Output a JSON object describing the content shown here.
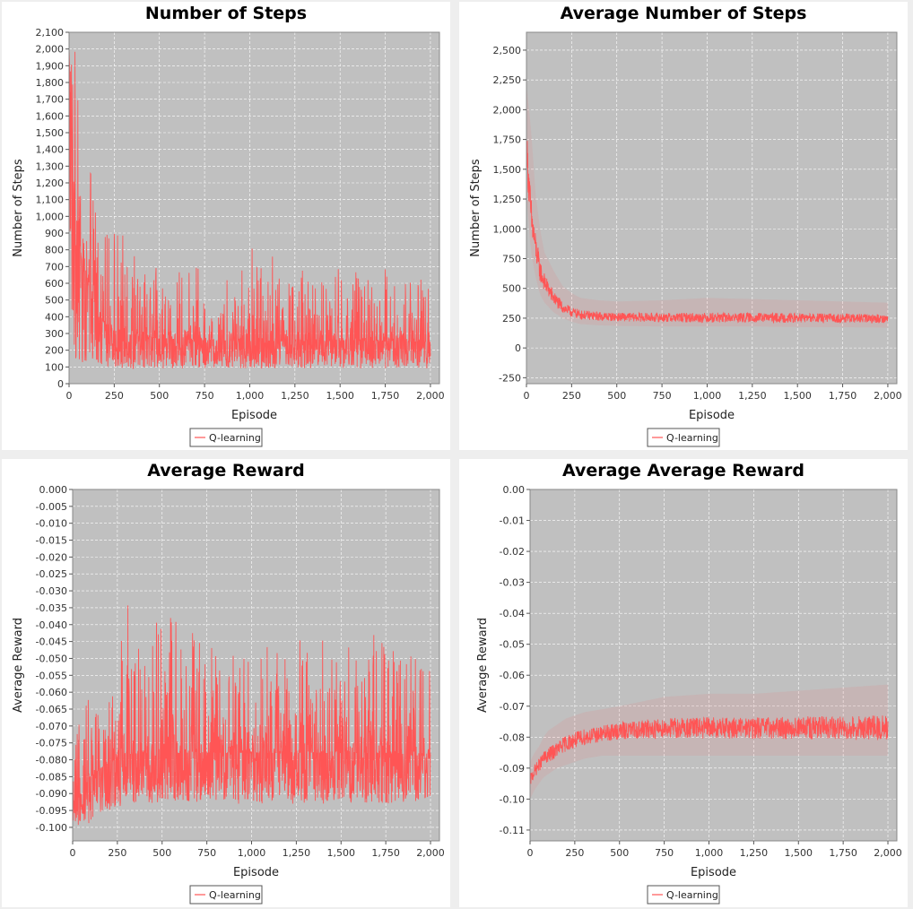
{
  "chart_data": [
    {
      "type": "line",
      "title": "Number of Steps",
      "xlabel": "Episode",
      "ylabel": "Number of Steps",
      "xlim": [
        0,
        2050
      ],
      "ylim": [
        0,
        2100
      ],
      "xticks": [
        0,
        250,
        500,
        750,
        1000,
        1250,
        1500,
        1750,
        2000
      ],
      "xtick_labels": [
        "0",
        "250",
        "500",
        "750",
        "1,000",
        "1,250",
        "1,500",
        "1,750",
        "2,000"
      ],
      "yticks": [
        0,
        100,
        200,
        300,
        400,
        500,
        600,
        700,
        800,
        900,
        1000,
        1100,
        1200,
        1300,
        1400,
        1500,
        1600,
        1700,
        1800,
        1900,
        2000,
        2100
      ],
      "ytick_labels": [
        "0",
        "100",
        "200",
        "300",
        "400",
        "500",
        "600",
        "700",
        "800",
        "900",
        "1,000",
        "1,100",
        "1,200",
        "1,300",
        "1,400",
        "1,500",
        "1,600",
        "1,700",
        "1,800",
        "1,900",
        "2,000",
        "2,100"
      ],
      "grid": true,
      "legend": "bottom-center",
      "series": [
        {
          "name": "Q-learning",
          "color": "#ff5555",
          "x": [
            0,
            25,
            50,
            75,
            100,
            150,
            200,
            250,
            300,
            400,
            500,
            750,
            1000,
            1250,
            1500,
            1750,
            2000
          ],
          "y": [
            2000,
            1100,
            900,
            700,
            600,
            420,
            360,
            320,
            300,
            280,
            270,
            260,
            255,
            255,
            255,
            255,
            250
          ],
          "min": [
            200,
            150,
            140,
            120,
            110,
            100,
            100,
            100,
            90,
            90,
            90,
            90,
            90,
            90,
            90,
            90,
            90
          ],
          "max": [
            2000,
            2000,
            2000,
            1550,
            1250,
            1700,
            900,
            1000,
            880,
            700,
            690,
            700,
            820,
            700,
            700,
            710,
            600
          ]
        }
      ]
    },
    {
      "type": "line",
      "title": "Average Number of Steps",
      "xlabel": "Episode",
      "ylabel": "Number of Steps",
      "xlim": [
        0,
        2050
      ],
      "ylim": [
        -300,
        2650
      ],
      "xticks": [
        0,
        250,
        500,
        750,
        1000,
        1250,
        1500,
        1750,
        2000
      ],
      "xtick_labels": [
        "0",
        "250",
        "500",
        "750",
        "1,000",
        "1,250",
        "1,500",
        "1,750",
        "2,000"
      ],
      "yticks": [
        -250,
        0,
        250,
        500,
        750,
        1000,
        1250,
        1500,
        1750,
        2000,
        2250,
        2500
      ],
      "ytick_labels": [
        "-250",
        "0",
        "250",
        "500",
        "750",
        "1,000",
        "1,250",
        "1,500",
        "1,750",
        "2,000",
        "2,250",
        "2,500"
      ],
      "grid": true,
      "legend": "bottom-center",
      "series": [
        {
          "name": "Q-learning",
          "color": "#ff5555",
          "x": [
            0,
            25,
            50,
            75,
            100,
            150,
            200,
            250,
            300,
            400,
            500,
            750,
            1000,
            1250,
            1500,
            1750,
            2000
          ],
          "y": [
            1700,
            1100,
            850,
            650,
            550,
            420,
            340,
            300,
            280,
            265,
            260,
            255,
            255,
            255,
            252,
            250,
            245
          ],
          "min": [
            1300,
            800,
            600,
            450,
            380,
            300,
            250,
            220,
            200,
            190,
            185,
            180,
            180,
            180,
            175,
            175,
            170
          ],
          "max": [
            2200,
            1850,
            1300,
            1000,
            800,
            650,
            520,
            460,
            420,
            400,
            390,
            400,
            420,
            410,
            400,
            390,
            380
          ]
        }
      ]
    },
    {
      "type": "line",
      "title": "Average Reward",
      "xlabel": "Episode",
      "ylabel": "Average Reward",
      "xlim": [
        0,
        2050
      ],
      "ylim": [
        -0.104,
        0
      ],
      "xticks": [
        0,
        250,
        500,
        750,
        1000,
        1250,
        1500,
        1750,
        2000
      ],
      "xtick_labels": [
        "0",
        "250",
        "500",
        "750",
        "1,000",
        "1,250",
        "1,500",
        "1,750",
        "2,000"
      ],
      "yticks": [
        0,
        -0.005,
        -0.01,
        -0.015,
        -0.02,
        -0.025,
        -0.03,
        -0.035,
        -0.04,
        -0.045,
        -0.05,
        -0.055,
        -0.06,
        -0.065,
        -0.07,
        -0.075,
        -0.08,
        -0.085,
        -0.09,
        -0.095,
        -0.1
      ],
      "ytick_labels": [
        "0.000",
        "-0.005",
        "-0.010",
        "-0.015",
        "-0.020",
        "-0.025",
        "-0.030",
        "-0.035",
        "-0.040",
        "-0.045",
        "-0.050",
        "-0.055",
        "-0.060",
        "-0.065",
        "-0.070",
        "-0.075",
        "-0.080",
        "-0.085",
        "-0.090",
        "-0.095",
        "-0.100"
      ],
      "grid": true,
      "legend": "bottom-center",
      "series": [
        {
          "name": "Q-learning",
          "color": "#ff5555",
          "x": [
            0,
            25,
            50,
            75,
            100,
            150,
            200,
            250,
            300,
            400,
            500,
            750,
            1000,
            1250,
            1500,
            1750,
            2000
          ],
          "y": [
            -0.097,
            -0.092,
            -0.09,
            -0.087,
            -0.085,
            -0.083,
            -0.081,
            -0.08,
            -0.079,
            -0.078,
            -0.078,
            -0.078,
            -0.078,
            -0.078,
            -0.078,
            -0.078,
            -0.079
          ],
          "min": [
            -0.1,
            -0.1,
            -0.1,
            -0.1,
            -0.098,
            -0.096,
            -0.095,
            -0.094,
            -0.093,
            -0.093,
            -0.093,
            -0.093,
            -0.093,
            -0.093,
            -0.093,
            -0.093,
            -0.092
          ],
          "max": [
            -0.085,
            -0.072,
            -0.065,
            -0.062,
            -0.06,
            -0.055,
            -0.058,
            -0.055,
            -0.03,
            -0.05,
            -0.034,
            -0.045,
            -0.048,
            -0.043,
            -0.045,
            -0.042,
            -0.054
          ]
        }
      ]
    },
    {
      "type": "line",
      "title": "Average Average Reward",
      "xlabel": "Episode",
      "ylabel": "Average Reward",
      "xlim": [
        0,
        2050
      ],
      "ylim": [
        -0.1135,
        0
      ],
      "xticks": [
        0,
        250,
        500,
        750,
        1000,
        1250,
        1500,
        1750,
        2000
      ],
      "xtick_labels": [
        "0",
        "250",
        "500",
        "750",
        "1,000",
        "1,250",
        "1,500",
        "1,750",
        "2,000"
      ],
      "yticks": [
        0,
        -0.01,
        -0.02,
        -0.03,
        -0.04,
        -0.05,
        -0.06,
        -0.07,
        -0.08,
        -0.09,
        -0.1,
        -0.11
      ],
      "ytick_labels": [
        "0.00",
        "-0.01",
        "-0.02",
        "-0.03",
        "-0.04",
        "-0.05",
        "-0.06",
        "-0.07",
        "-0.08",
        "-0.09",
        "-0.10",
        "-0.11"
      ],
      "grid": true,
      "legend": "bottom-center",
      "series": [
        {
          "name": "Q-learning",
          "color": "#ff5555",
          "x": [
            0,
            25,
            50,
            75,
            100,
            150,
            200,
            250,
            300,
            400,
            500,
            750,
            1000,
            1250,
            1500,
            1750,
            2000
          ],
          "y": [
            -0.094,
            -0.091,
            -0.089,
            -0.087,
            -0.086,
            -0.084,
            -0.082,
            -0.081,
            -0.08,
            -0.079,
            -0.078,
            -0.077,
            -0.077,
            -0.077,
            -0.077,
            -0.077,
            -0.077
          ],
          "min": [
            -0.1,
            -0.097,
            -0.095,
            -0.093,
            -0.092,
            -0.09,
            -0.089,
            -0.088,
            -0.087,
            -0.086,
            -0.086,
            -0.086,
            -0.086,
            -0.086,
            -0.086,
            -0.086,
            -0.086
          ],
          "max": [
            -0.088,
            -0.085,
            -0.083,
            -0.08,
            -0.078,
            -0.076,
            -0.074,
            -0.073,
            -0.072,
            -0.071,
            -0.07,
            -0.067,
            -0.066,
            -0.066,
            -0.065,
            -0.064,
            -0.063
          ]
        }
      ]
    }
  ]
}
